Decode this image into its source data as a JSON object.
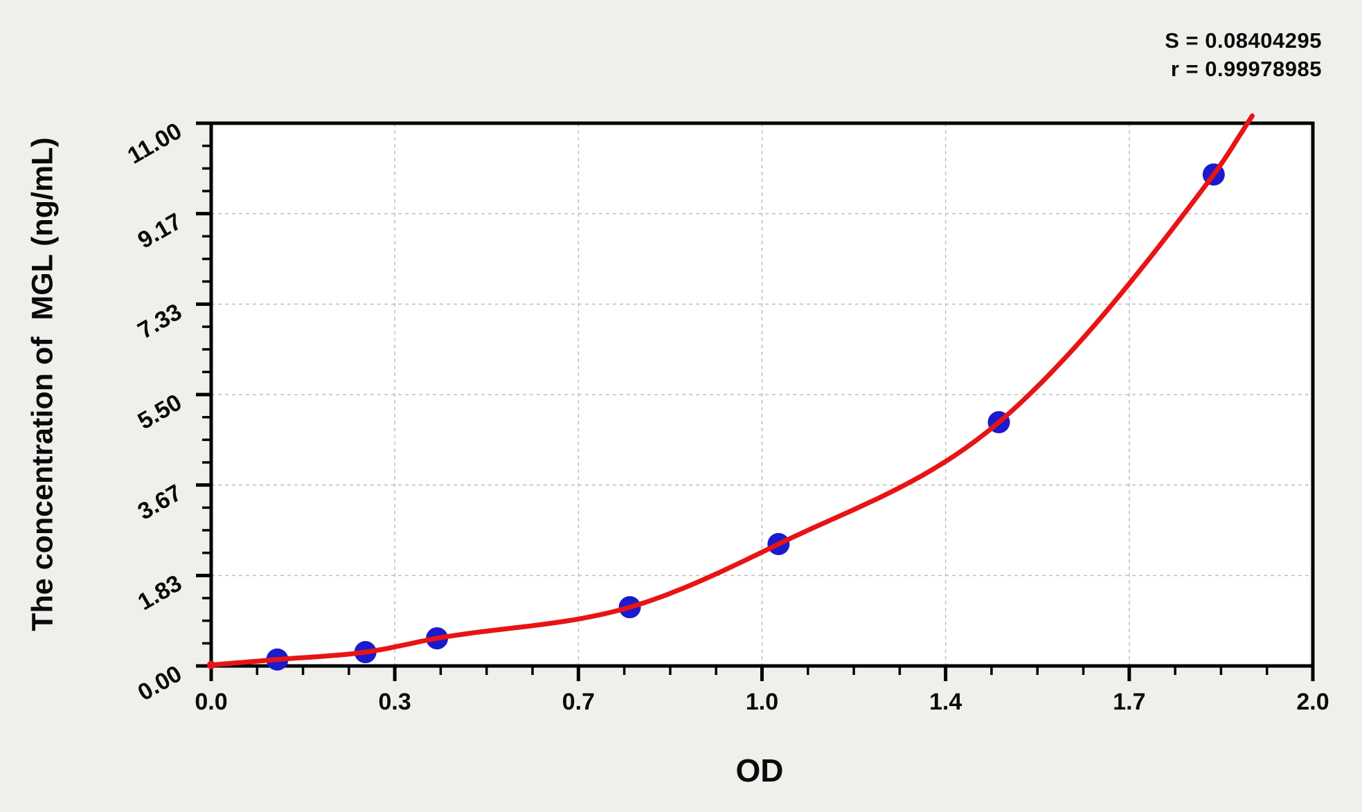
{
  "page": {
    "background": "#efefec"
  },
  "stats": {
    "s_text": "S = 0.08404295",
    "r_text": "r = 0.99978985"
  },
  "chart_data": {
    "type": "scatter",
    "title": "",
    "xlabel": "OD",
    "ylabel": "The concentration of  MGL (ng/mL)",
    "S": 0.08404295,
    "r": 0.99978985,
    "xlim": [
      0,
      2
    ],
    "ylim": [
      0,
      11
    ],
    "x_tick_values": [
      0,
      0.3333,
      0.6667,
      1.0,
      1.3333,
      1.6667,
      2.0
    ],
    "x_tick_labels": [
      "0.0",
      "0.3",
      "0.7",
      "1.0",
      "1.4",
      "1.7",
      "2.0"
    ],
    "y_tick_values": [
      0,
      1.8333,
      3.6667,
      5.5,
      7.3333,
      9.1667,
      11.0
    ],
    "y_tick_labels": [
      "0.00",
      "1.83",
      "3.67",
      "5.50",
      "7.33",
      "9.17",
      "11.00"
    ],
    "minor_divisions": 4,
    "grid": "dashed-major",
    "legend_position": "none",
    "series": [
      {
        "name": "standards",
        "marker": "circle",
        "color": "#1b1bcd",
        "points": [
          {
            "od": 0.12,
            "conc": 0.13
          },
          {
            "od": 0.28,
            "conc": 0.28
          },
          {
            "od": 0.41,
            "conc": 0.56
          },
          {
            "od": 0.76,
            "conc": 1.19
          },
          {
            "od": 1.03,
            "conc": 2.47
          },
          {
            "od": 1.43,
            "conc": 4.94
          },
          {
            "od": 1.82,
            "conc": 9.96
          }
        ]
      }
    ],
    "fit_curve": {
      "name": "fitted-standard-curve",
      "color": "#e81414",
      "points": [
        [
          0,
          0.02
        ],
        [
          0.12,
          0.13
        ],
        [
          0.28,
          0.28
        ],
        [
          0.41,
          0.56
        ],
        [
          0.76,
          1.19
        ],
        [
          1.03,
          2.47
        ],
        [
          1.43,
          4.94
        ],
        [
          1.82,
          9.96
        ],
        [
          1.89,
          11.15
        ]
      ]
    },
    "colors": {
      "axis": "#000000",
      "grid": "#bdbdbd",
      "plot_bg": "#ffffff",
      "curve": "#e81414",
      "points": "#1b1bcd"
    }
  }
}
